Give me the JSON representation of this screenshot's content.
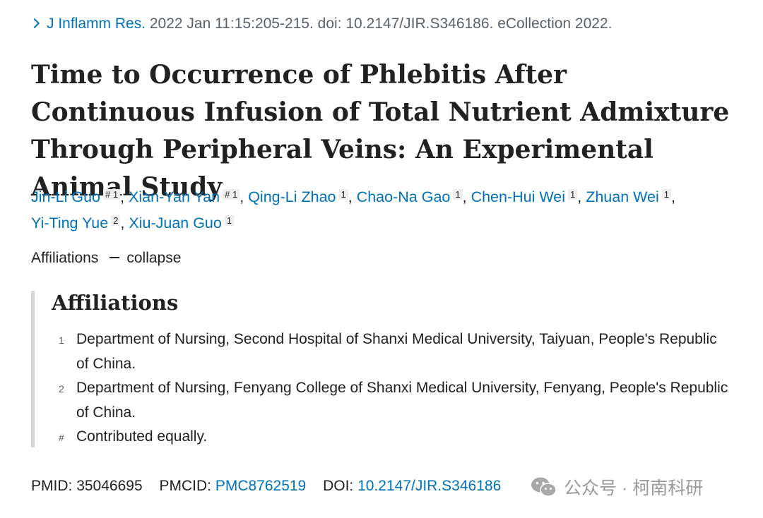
{
  "citation": {
    "journal": "J Inflamm Res.",
    "details": "2022 Jan 11:15:205-215. doi: 10.2147/JIR.S346186. eCollection 2022."
  },
  "title": "Time to Occurrence of Phlebitis After Continuous Infusion of Total Nutrient Admixture Through Peripheral Veins: An Experimental Animal Study",
  "authors": [
    {
      "name": "Jin-Li Guo",
      "marks": "# 1",
      "sep": ","
    },
    {
      "name": "Xian-Yan Yan",
      "marks": "# 1",
      "sep": ","
    },
    {
      "name": "Qing-Li Zhao",
      "marks": "1",
      "sep": ","
    },
    {
      "name": "Chao-Na Gao",
      "marks": "1",
      "sep": ","
    },
    {
      "name": "Chen-Hui Wei",
      "marks": "1",
      "sep": ","
    },
    {
      "name": "Zhuan Wei",
      "marks": "1",
      "sep": ","
    },
    {
      "name": "Yi-Ting Yue",
      "marks": "2",
      "sep": ","
    },
    {
      "name": "Xiu-Juan Guo",
      "marks": "1",
      "sep": ""
    }
  ],
  "affiliations_toggle": {
    "label": "Affiliations",
    "action": "collapse"
  },
  "affiliations": {
    "heading": "Affiliations",
    "items": [
      {
        "marker": "1",
        "text": "Department of Nursing, Second Hospital of Shanxi Medical University, Taiyuan, People's Republic of China."
      },
      {
        "marker": "2",
        "text": "Department of Nursing, Fenyang College of Shanxi Medical University, Fenyang, People's Republic of China."
      },
      {
        "marker": "#",
        "text": "Contributed equally."
      }
    ]
  },
  "identifiers": {
    "pmid_label": "PMID:",
    "pmid": "35046695",
    "pmcid_label": "PMCID:",
    "pmcid": "PMC8762519",
    "doi_label": "DOI:",
    "doi": "10.2147/JIR.S346186"
  },
  "watermark": {
    "icon": "wechat-icon",
    "text": "公众号 · 柯南科研"
  }
}
